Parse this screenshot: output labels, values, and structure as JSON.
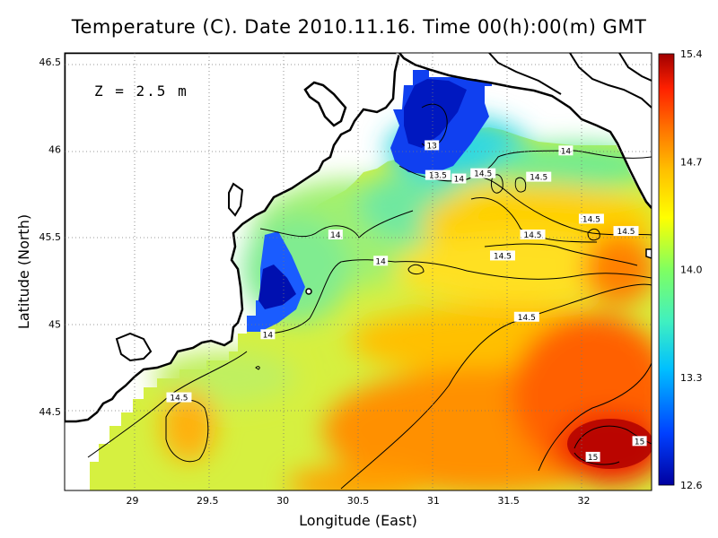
{
  "title": "Temperature (C). Date 2010.11.16. Time 00(h):00(m) GMT",
  "depth_label": "Z = 2.5 m",
  "chart_data": {
    "type": "heatmap",
    "title": "Temperature (C). Date 2010.11.16. Time 00(h):00(m) GMT",
    "xlabel": "Longitude (East)",
    "ylabel": "Latitude (North)",
    "xlim": [
      28.55,
      32.45
    ],
    "ylim": [
      44.05,
      46.55
    ],
    "x_ticks": [
      29,
      29.5,
      30,
      30.5,
      31,
      31.5,
      32
    ],
    "x_tick_labels": [
      "29",
      "29.5",
      "30",
      "30.5",
      "31",
      "31.5",
      "32"
    ],
    "y_ticks": [
      44.5,
      45,
      45.5,
      46,
      46.5
    ],
    "y_tick_labels": [
      "44.5",
      "45",
      "45.5",
      "46",
      "46.5"
    ],
    "grid": true,
    "colorbar": {
      "min": 12.6,
      "max": 15.4,
      "tick_values": [
        15.4,
        14.7,
        14.0,
        13.3,
        12.6
      ],
      "tick_labels": [
        "15.4",
        "14.7",
        "14.0",
        "13.3",
        "12.6"
      ],
      "colors": [
        "#0000a0",
        "#0040ff",
        "#00c0ff",
        "#40f0c0",
        "#80ff60",
        "#ffff00",
        "#ffc000",
        "#ff7000",
        "#ff2000",
        "#a00000"
      ]
    },
    "contour_labels": [
      {
        "text": "13",
        "lon": 30.99,
        "lat": 46.02
      },
      {
        "text": "13.5",
        "lon": 31.03,
        "lat": 45.85
      },
      {
        "text": "14",
        "lon": 31.17,
        "lat": 45.83
      },
      {
        "text": "14",
        "lon": 31.88,
        "lat": 45.99
      },
      {
        "text": "14.5",
        "lon": 31.33,
        "lat": 45.86
      },
      {
        "text": "14.5",
        "lon": 31.7,
        "lat": 45.84
      },
      {
        "text": "14.5",
        "lon": 32.05,
        "lat": 45.6
      },
      {
        "text": "14.5",
        "lon": 32.28,
        "lat": 45.53
      },
      {
        "text": "14.5",
        "lon": 31.66,
        "lat": 45.51
      },
      {
        "text": "14.5",
        "lon": 31.46,
        "lat": 45.39
      },
      {
        "text": "14",
        "lon": 30.35,
        "lat": 45.51
      },
      {
        "text": "14",
        "lon": 30.65,
        "lat": 45.36
      },
      {
        "text": "14",
        "lon": 29.9,
        "lat": 44.94
      },
      {
        "text": "14.5",
        "lon": 31.62,
        "lat": 45.04
      },
      {
        "text": "14.5",
        "lon": 29.31,
        "lat": 44.58
      },
      {
        "text": "15",
        "lon": 32.37,
        "lat": 44.33
      },
      {
        "text": "15",
        "lon": 32.06,
        "lat": 44.24
      }
    ]
  }
}
